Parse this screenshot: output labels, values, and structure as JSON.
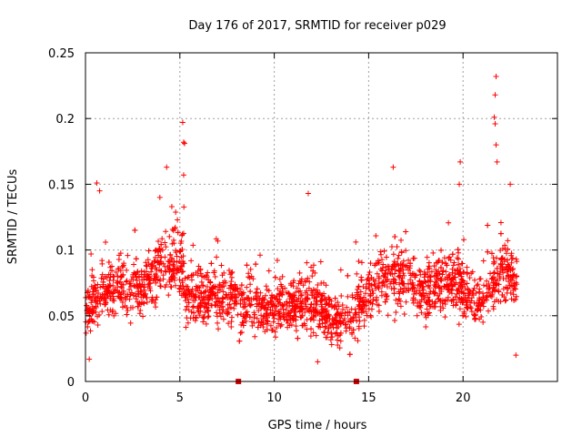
{
  "chart_data": {
    "type": "scatter",
    "title": "Day 176 of 2017, SRMTID for receiver p029",
    "xlabel": "GPS time / hours",
    "ylabel": "SRMTID / TECUs",
    "xlim": [
      0,
      25
    ],
    "ylim": [
      0,
      0.25
    ],
    "x_ticks": [
      0,
      5,
      10,
      15,
      20
    ],
    "x_tick_labels": [
      "0",
      "5",
      "10",
      "15",
      "20"
    ],
    "y_ticks": [
      0,
      0.05,
      0.1,
      0.15,
      0.2,
      0.25
    ],
    "y_tick_labels": [
      "0",
      "0.05",
      "0.1",
      "0.15",
      "0.2",
      "0.25"
    ],
    "grid": true,
    "marker": "+",
    "color": "#ff0000",
    "gap_markers_x": [
      8.1,
      14.35
    ],
    "series_envelope": {
      "name": "SRMTID",
      "x_start": 0,
      "x_end": 22.85,
      "profile": [
        {
          "x": 0.0,
          "median": 0.055,
          "spread": 0.018
        },
        {
          "x": 1.0,
          "median": 0.07,
          "spread": 0.022
        },
        {
          "x": 2.0,
          "median": 0.072,
          "spread": 0.02
        },
        {
          "x": 3.0,
          "median": 0.07,
          "spread": 0.022
        },
        {
          "x": 4.0,
          "median": 0.09,
          "spread": 0.025
        },
        {
          "x": 5.0,
          "median": 0.095,
          "spread": 0.028
        },
        {
          "x": 5.4,
          "median": 0.065,
          "spread": 0.02
        },
        {
          "x": 7.0,
          "median": 0.065,
          "spread": 0.02
        },
        {
          "x": 8.5,
          "median": 0.058,
          "spread": 0.02
        },
        {
          "x": 10.0,
          "median": 0.055,
          "spread": 0.02
        },
        {
          "x": 12.0,
          "median": 0.06,
          "spread": 0.022
        },
        {
          "x": 13.0,
          "median": 0.05,
          "spread": 0.018
        },
        {
          "x": 14.0,
          "median": 0.048,
          "spread": 0.018
        },
        {
          "x": 15.0,
          "median": 0.07,
          "spread": 0.022
        },
        {
          "x": 16.5,
          "median": 0.08,
          "spread": 0.025
        },
        {
          "x": 18.0,
          "median": 0.07,
          "spread": 0.022
        },
        {
          "x": 19.5,
          "median": 0.075,
          "spread": 0.022
        },
        {
          "x": 21.0,
          "median": 0.06,
          "spread": 0.02
        },
        {
          "x": 22.0,
          "median": 0.085,
          "spread": 0.025
        },
        {
          "x": 22.85,
          "median": 0.075,
          "spread": 0.02
        }
      ],
      "peaks": [
        {
          "x": 0.6,
          "y": 0.151
        },
        {
          "x": 0.75,
          "y": 0.145
        },
        {
          "x": 4.3,
          "y": 0.163
        },
        {
          "x": 5.15,
          "y": 0.197
        },
        {
          "x": 5.2,
          "y": 0.182
        },
        {
          "x": 5.25,
          "y": 0.181
        },
        {
          "x": 5.2,
          "y": 0.157
        },
        {
          "x": 11.8,
          "y": 0.143
        },
        {
          "x": 12.3,
          "y": 0.015
        },
        {
          "x": 16.3,
          "y": 0.163
        },
        {
          "x": 19.85,
          "y": 0.167
        },
        {
          "x": 19.8,
          "y": 0.15
        },
        {
          "x": 21.75,
          "y": 0.232
        },
        {
          "x": 21.7,
          "y": 0.218
        },
        {
          "x": 21.65,
          "y": 0.201
        },
        {
          "x": 21.7,
          "y": 0.196
        },
        {
          "x": 21.75,
          "y": 0.18
        },
        {
          "x": 21.8,
          "y": 0.167
        },
        {
          "x": 22.5,
          "y": 0.15
        },
        {
          "x": 22.8,
          "y": 0.02
        },
        {
          "x": 0.2,
          "y": 0.017
        }
      ]
    }
  }
}
